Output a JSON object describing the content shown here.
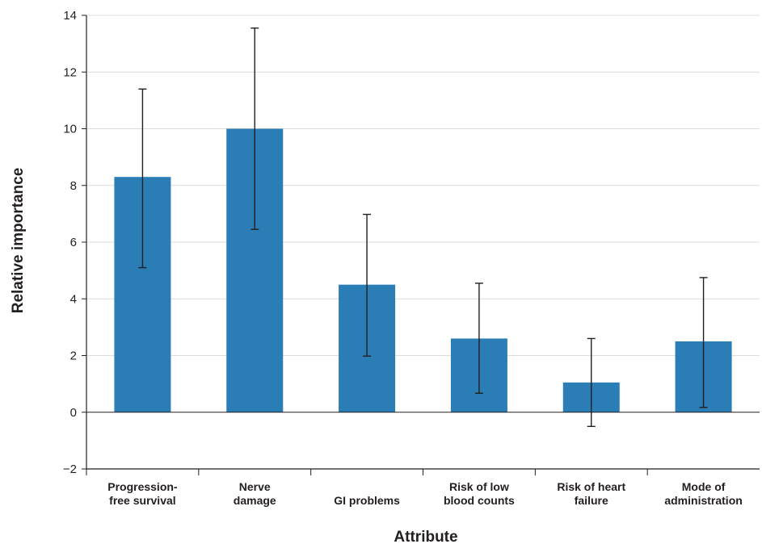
{
  "chart_data": {
    "type": "bar",
    "xlabel": "Attribute",
    "ylabel": "Relative importance",
    "ylim": [
      -2,
      14
    ],
    "yticks": [
      14,
      12,
      10,
      8,
      6,
      4,
      2,
      0,
      -2
    ],
    "ytick_labels": [
      "14",
      "12",
      "10",
      "8",
      "6",
      "4",
      "2",
      "0",
      "−2"
    ],
    "grid": true,
    "bar_color": "#2a7db5",
    "categories": [
      [
        "Progression-",
        "free survival"
      ],
      [
        "Nerve",
        "damage"
      ],
      [
        "GI problems"
      ],
      [
        "Risk of low",
        "blood counts"
      ],
      [
        "Risk of heart",
        "failure"
      ],
      [
        "Mode of",
        "administration"
      ]
    ],
    "values": [
      8.3,
      10.0,
      4.5,
      2.6,
      1.05,
      2.5
    ],
    "error_low": [
      5.1,
      6.45,
      1.98,
      0.67,
      -0.5,
      0.17
    ],
    "error_high": [
      11.4,
      13.55,
      6.98,
      4.55,
      2.6,
      4.75
    ]
  }
}
